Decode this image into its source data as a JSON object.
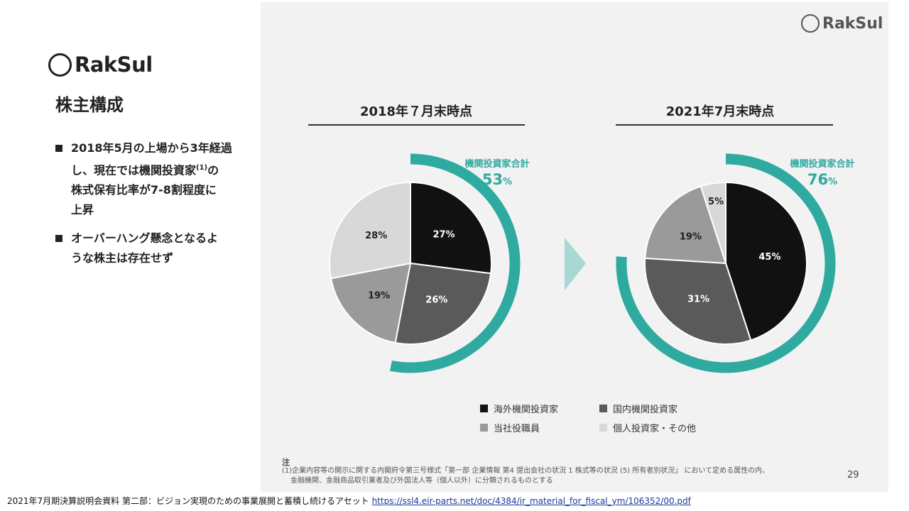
{
  "brand": {
    "name": "RakSul"
  },
  "left": {
    "title": "株主構成",
    "bullets": [
      {
        "line1": "2018年5月の上場から3年経過",
        "line2a": "し、現在では機関投資家",
        "sup": "(1)",
        "line2b": "の",
        "line3": "株式保有比率が7-8割程度に",
        "line4": "上昇"
      },
      {
        "line1": "オーバーハング懸念となるよ",
        "line2": "うな株主は存在せず"
      }
    ]
  },
  "colors": {
    "overseas": "#111111",
    "domestic": "#5a5a5a",
    "officers": "#9a9a9a",
    "individuals": "#d8d8d8",
    "accent": "#2faaa0"
  },
  "chart_data": {
    "type": "pie",
    "legend": [
      "海外機関投資家",
      "国内機関投資家",
      "当社役職員",
      "個人投資家・その他"
    ],
    "charts": [
      {
        "title": "2018年７月末時点",
        "institutional_label": "機関投資家合計",
        "institutional_value": "53",
        "institutional_unit": "%",
        "institutional_share": 0.53,
        "slices": [
          {
            "name": "海外機関投資家",
            "value": 27,
            "label": "27%"
          },
          {
            "name": "国内機関投資家",
            "value": 26,
            "label": "26%"
          },
          {
            "name": "当社役職員",
            "value": 19,
            "label": "19%"
          },
          {
            "name": "個人投資家・その他",
            "value": 28,
            "label": "28%"
          }
        ]
      },
      {
        "title": "2021年7月末時点",
        "institutional_label": "機関投資家合計",
        "institutional_value": "76",
        "institutional_unit": "%",
        "institutional_share": 0.76,
        "slices": [
          {
            "name": "海外機関投資家",
            "value": 45,
            "label": "45%"
          },
          {
            "name": "国内機関投資家",
            "value": 31,
            "label": "31%"
          },
          {
            "name": "当社役職員",
            "value": 19,
            "label": "19%"
          },
          {
            "name": "個人投資家・その他",
            "value": 5,
            "label": "5%"
          }
        ]
      }
    ]
  },
  "notes": {
    "label": "注",
    "line1": "(1)企業内容等の開示に関する内閣府令第三号様式「第一部 企業情報 第4 提出会社の状況 1 株式等の状況 (5) 所有者別状況」 において定める属性の内、",
    "line2": "金融機関、金融商品取引業者及び外国法人等（個人以外）に分類されるものとする"
  },
  "page_number": "29",
  "footer": {
    "text": "2021年7月期決算説明会資料 第二部：ビジョン実現のための事業展開と蓄積し続けるアセット ",
    "link": "https://ssl4.eir-parts.net/doc/4384/ir_material_for_fiscal_ym/106352/00.pdf"
  }
}
